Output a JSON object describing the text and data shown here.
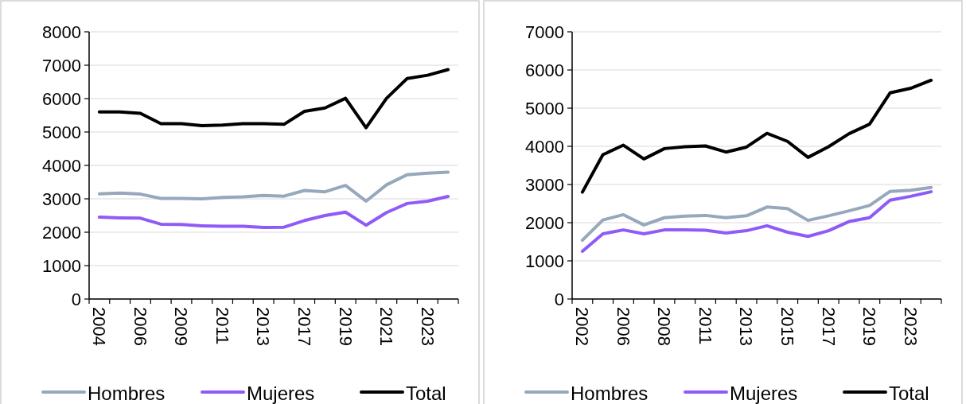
{
  "chart_data": [
    {
      "type": "line",
      "categories": [
        "2004",
        null,
        "2006",
        null,
        "2009",
        null,
        "2011",
        null,
        "2013",
        null,
        "2017",
        null,
        "2019",
        null,
        "2021",
        null,
        "2023",
        null
      ],
      "ylim": [
        0,
        8000
      ],
      "yticks": [
        0,
        1000,
        2000,
        3000,
        4000,
        5000,
        6000,
        7000,
        8000
      ],
      "grid": "y",
      "legend": "bottom",
      "series": [
        {
          "name": "Hombres",
          "color": "#96a8bc",
          "values": [
            3150,
            3170,
            3140,
            3010,
            3010,
            3000,
            3040,
            3060,
            3100,
            3080,
            3250,
            3210,
            3400,
            2930,
            3420,
            3720,
            3770,
            3800
          ]
        },
        {
          "name": "Mujeres",
          "color": "#8f5bf7",
          "values": [
            2450,
            2430,
            2420,
            2240,
            2230,
            2190,
            2180,
            2180,
            2140,
            2150,
            2350,
            2500,
            2600,
            2210,
            2590,
            2860,
            2930,
            3070
          ]
        },
        {
          "name": "Total",
          "color": "#000000",
          "values": [
            5600,
            5600,
            5560,
            5250,
            5250,
            5190,
            5210,
            5250,
            5250,
            5230,
            5620,
            5720,
            6010,
            5130,
            6010,
            6600,
            6700,
            6870
          ]
        }
      ]
    },
    {
      "type": "line",
      "categories": [
        "2002",
        null,
        "2006",
        null,
        "2008",
        null,
        "2011",
        null,
        "2013",
        null,
        "2015",
        null,
        "2017",
        null,
        "2019",
        null,
        "2023",
        null
      ],
      "ylim": [
        0,
        7000
      ],
      "yticks": [
        0,
        1000,
        2000,
        3000,
        4000,
        5000,
        6000,
        7000
      ],
      "grid": "y",
      "legend": "bottom",
      "series": [
        {
          "name": "Hombres",
          "color": "#96a8bc",
          "values": [
            1540,
            2070,
            2210,
            1940,
            2130,
            2170,
            2190,
            2130,
            2180,
            2410,
            2370,
            2060,
            2180,
            2310,
            2450,
            2820,
            2850,
            2920
          ]
        },
        {
          "name": "Mujeres",
          "color": "#8f5bf7",
          "values": [
            1250,
            1710,
            1810,
            1710,
            1810,
            1810,
            1800,
            1730,
            1790,
            1920,
            1750,
            1640,
            1790,
            2030,
            2130,
            2590,
            2690,
            2810
          ]
        },
        {
          "name": "Total",
          "color": "#000000",
          "values": [
            2800,
            3780,
            4030,
            3670,
            3940,
            3990,
            4010,
            3850,
            3980,
            4340,
            4130,
            3710,
            3990,
            4330,
            4580,
            5400,
            5520,
            5730
          ]
        }
      ]
    }
  ]
}
